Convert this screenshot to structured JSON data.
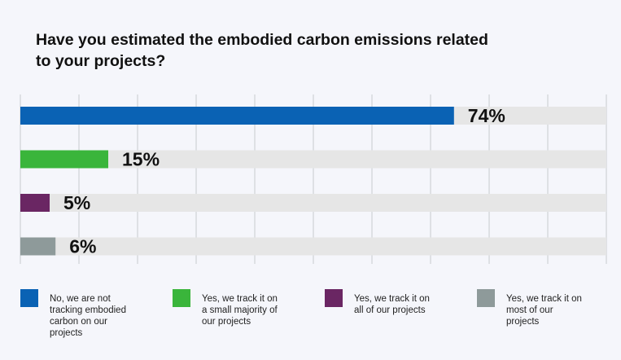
{
  "title_lines": [
    "Have you estimated the embodied carbon emissions related",
    "to your projects?"
  ],
  "colors": {
    "no_tracking": "#0a62b4",
    "small_majority": "#3ab53b",
    "all_projects": "#6a2663",
    "most_projects": "#8e9a9a",
    "track": "#e6e6e6",
    "grid": "#cfd3d6"
  },
  "chart_data": {
    "type": "bar",
    "orientation": "horizontal",
    "title": "Have you estimated the embodied carbon emissions related to your projects?",
    "xlim": [
      0,
      100
    ],
    "grid": true,
    "legend_position": "bottom",
    "categories": [
      "No, we are not tracking embodied carbon on our projects",
      "Yes, we track it on a small majority of our projects",
      "Yes, we track it on all of our projects",
      "Yes, we track it on most of our projects"
    ],
    "values": [
      74,
      15,
      5,
      6
    ],
    "value_labels": [
      "74%",
      "15%",
      "5%",
      "6%"
    ]
  },
  "legend": [
    {
      "label_lines": [
        "No, we are not",
        "tracking embodied",
        "carbon on our",
        "projects"
      ],
      "color": "#0a62b4"
    },
    {
      "label_lines": [
        "Yes, we track it on",
        "a small majority of",
        "our projects"
      ],
      "color": "#3ab53b"
    },
    {
      "label_lines": [
        "Yes, we track it on",
        "all of our projects"
      ],
      "color": "#6a2663"
    },
    {
      "label_lines": [
        "Yes, we track it on",
        "most of our",
        "projects"
      ],
      "color": "#8e9a9a"
    }
  ]
}
